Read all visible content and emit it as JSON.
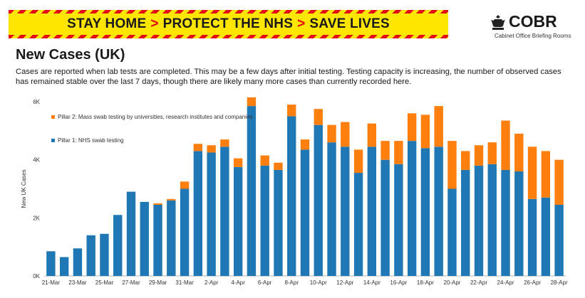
{
  "banner": {
    "part1": "STAY HOME",
    "part2": "PROTECT THE NHS",
    "part3": "SAVE LIVES",
    "separator": ">",
    "stripe_color": "#e30613",
    "background_color": "#ffe600"
  },
  "logo": {
    "wordmark": "COBR",
    "subtitle": "Cabinet Office Briefing Rooms",
    "icon": "crest-icon"
  },
  "page": {
    "title": "New Cases (UK)",
    "subtitle": "Cases are reported when lab tests are completed. This may be a few days after initial testing. Testing capacity is increasing, the number of observed cases has remained stable over the last 7 days, though there are likely many more cases than currently recorded here."
  },
  "chart_data": {
    "type": "bar",
    "stacked": true,
    "ylabel": "New UK Cases",
    "ylim": [
      0,
      6000
    ],
    "yticks": [
      0,
      2000,
      4000,
      6000
    ],
    "ytick_labels": [
      "0K",
      "2K",
      "4K",
      "6K"
    ],
    "legend_position": "top-left",
    "categories": [
      "21-Mar",
      "22-Mar",
      "23-Mar",
      "24-Mar",
      "25-Mar",
      "26-Mar",
      "27-Mar",
      "28-Mar",
      "29-Mar",
      "30-Mar",
      "31-Mar",
      "1-Apr",
      "2-Apr",
      "3-Apr",
      "4-Apr",
      "5-Apr",
      "6-Apr",
      "7-Apr",
      "8-Apr",
      "9-Apr",
      "10-Apr",
      "11-Apr",
      "12-Apr",
      "13-Apr",
      "14-Apr",
      "15-Apr",
      "16-Apr",
      "17-Apr",
      "18-Apr",
      "19-Apr",
      "20-Apr",
      "21-Apr",
      "22-Apr",
      "23-Apr",
      "24-Apr",
      "25-Apr",
      "26-Apr",
      "27-Apr",
      "28-Apr"
    ],
    "tick_labels": [
      "21-Mar",
      "23-Mar",
      "25-Mar",
      "27-Mar",
      "29-Mar",
      "31-Mar",
      "2-Apr",
      "4-Apr",
      "6-Apr",
      "8-Apr",
      "10-Apr",
      "12-Apr",
      "14-Apr",
      "16-Apr",
      "18-Apr",
      "20-Apr",
      "22-Apr",
      "24-Apr",
      "26-Apr",
      "28-Apr"
    ],
    "series": [
      {
        "name": "Pillar 1: NHS swab testing",
        "color": "#1f77b4",
        "values": [
          850,
          650,
          950,
          1400,
          1450,
          2100,
          2900,
          2550,
          2450,
          2600,
          3000,
          4300,
          4250,
          4450,
          3750,
          5850,
          3800,
          3650,
          5500,
          4350,
          5200,
          4600,
          4450,
          3550,
          4450,
          4000,
          3850,
          4650,
          4400,
          4450,
          3000,
          3650,
          3800,
          3850,
          3650,
          3600,
          2650,
          2700,
          2450
        ]
      },
      {
        "name": "Pillar 2: Mass swab testing by universities, research institutes and companies",
        "color": "#ff7f0e",
        "values": [
          0,
          0,
          0,
          0,
          0,
          0,
          0,
          0,
          50,
          50,
          250,
          250,
          250,
          250,
          300,
          300,
          350,
          250,
          400,
          350,
          550,
          600,
          850,
          800,
          800,
          650,
          800,
          950,
          1150,
          1400,
          1650,
          650,
          700,
          750,
          1700,
          1300,
          1800,
          1600,
          1550
        ]
      }
    ]
  }
}
